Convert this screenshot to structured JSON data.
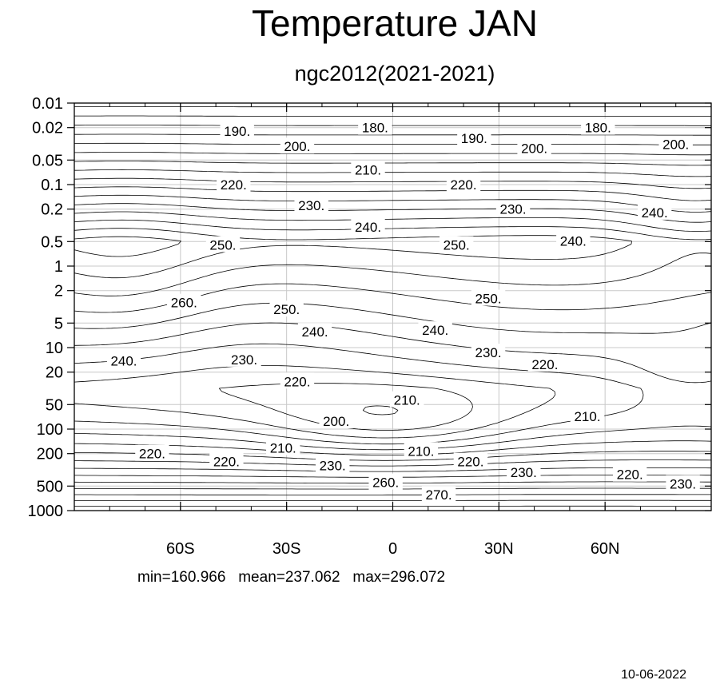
{
  "chart_data": {
    "type": "contour",
    "title": "Temperature JAN",
    "subtitle": "ngc2012(2021-2021)",
    "xlim": [
      -90,
      90
    ],
    "x_ticks": [
      {
        "value": -60,
        "label": "60S"
      },
      {
        "value": -30,
        "label": "30S"
      },
      {
        "value": 0,
        "label": "0"
      },
      {
        "value": 30,
        "label": "30N"
      },
      {
        "value": 60,
        "label": "60N"
      }
    ],
    "y_scale": "log",
    "y_reversed": true,
    "ylim": [
      0.01,
      1000
    ],
    "y_ticks": [
      {
        "value": 0.01,
        "label": "0.01"
      },
      {
        "value": 0.02,
        "label": "0.02"
      },
      {
        "value": 0.05,
        "label": "0.05"
      },
      {
        "value": 0.1,
        "label": "0.1"
      },
      {
        "value": 0.2,
        "label": "0.2"
      },
      {
        "value": 0.5,
        "label": "0.5"
      },
      {
        "value": 1,
        "label": "1"
      },
      {
        "value": 2,
        "label": "2"
      },
      {
        "value": 5,
        "label": "5"
      },
      {
        "value": 10,
        "label": "10"
      },
      {
        "value": 20,
        "label": "20"
      },
      {
        "value": 50,
        "label": "50"
      },
      {
        "value": 100,
        "label": "100"
      },
      {
        "value": 200,
        "label": "200"
      },
      {
        "value": 500,
        "label": "500"
      },
      {
        "value": 1000,
        "label": "1000"
      }
    ],
    "grid": true,
    "contour_interval": 5,
    "contour_labels": [
      {
        "text": "190.",
        "lat": -44,
        "p": 0.022
      },
      {
        "text": "180.",
        "lat": -5,
        "p": 0.02
      },
      {
        "text": "190.",
        "lat": 23,
        "p": 0.027
      },
      {
        "text": "180.",
        "lat": 58,
        "p": 0.02
      },
      {
        "text": "200.",
        "lat": -27,
        "p": 0.034
      },
      {
        "text": "200.",
        "lat": 40,
        "p": 0.036
      },
      {
        "text": "200.",
        "lat": 80,
        "p": 0.032
      },
      {
        "text": "210.",
        "lat": -7,
        "p": 0.066
      },
      {
        "text": "220.",
        "lat": -45,
        "p": 0.1
      },
      {
        "text": "220.",
        "lat": 20,
        "p": 0.1
      },
      {
        "text": "230.",
        "lat": -23,
        "p": 0.18
      },
      {
        "text": "230.",
        "lat": 34,
        "p": 0.2
      },
      {
        "text": "240.",
        "lat": -7,
        "p": 0.33
      },
      {
        "text": "240.",
        "lat": 51,
        "p": 0.49
      },
      {
        "text": "240.",
        "lat": 74,
        "p": 0.22
      },
      {
        "text": "250.",
        "lat": -48,
        "p": 0.55
      },
      {
        "text": "250.",
        "lat": 18,
        "p": 0.55
      },
      {
        "text": "260.",
        "lat": -59,
        "p": 2.8
      },
      {
        "text": "250.",
        "lat": -30,
        "p": 3.4
      },
      {
        "text": "250.",
        "lat": 27,
        "p": 2.5
      },
      {
        "text": "240.",
        "lat": -22,
        "p": 6.4
      },
      {
        "text": "240.",
        "lat": 12,
        "p": 6.1
      },
      {
        "text": "230.",
        "lat": -42,
        "p": 14
      },
      {
        "text": "230.",
        "lat": 27,
        "p": 11.5
      },
      {
        "text": "240.",
        "lat": -76,
        "p": 14.5
      },
      {
        "text": "220.",
        "lat": -27,
        "p": 26
      },
      {
        "text": "220.",
        "lat": 43,
        "p": 16
      },
      {
        "text": "210.",
        "lat": 4,
        "p": 44
      },
      {
        "text": "210.",
        "lat": 55,
        "p": 70
      },
      {
        "text": "200.",
        "lat": -16,
        "p": 80
      },
      {
        "text": "210.",
        "lat": -31,
        "p": 170
      },
      {
        "text": "210.",
        "lat": 8,
        "p": 185
      },
      {
        "text": "220.",
        "lat": -68,
        "p": 200
      },
      {
        "text": "220.",
        "lat": -47,
        "p": 250
      },
      {
        "text": "230.",
        "lat": -17,
        "p": 280
      },
      {
        "text": "220.",
        "lat": 22,
        "p": 250
      },
      {
        "text": "230.",
        "lat": 37,
        "p": 340
      },
      {
        "text": "220.",
        "lat": 67,
        "p": 360
      },
      {
        "text": "230.",
        "lat": 82,
        "p": 470
      },
      {
        "text": "260.",
        "lat": -2,
        "p": 450
      },
      {
        "text": "270.",
        "lat": 13,
        "p": 640
      }
    ],
    "stats": {
      "min": "160.966",
      "mean": "237.062",
      "max": "296.072"
    }
  },
  "footer": {
    "stats_text": "min=160.966   mean=237.062   max=296.072",
    "date": "10-06-2022"
  }
}
